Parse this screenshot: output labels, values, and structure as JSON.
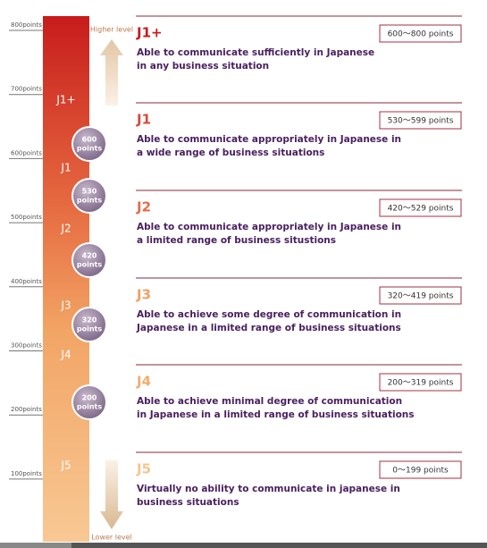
{
  "scale": {
    "labels": [
      "800points",
      "700points",
      "600points",
      "500points",
      "400points",
      "300points",
      "200points",
      "100points"
    ]
  },
  "bar": {
    "labels": [
      "J1+",
      "J1",
      "J2",
      "J3",
      "J4",
      "J5"
    ]
  },
  "markers": [
    {
      "top": "600",
      "bottom": "points"
    },
    {
      "top": "530",
      "bottom": "points"
    },
    {
      "top": "420",
      "bottom": "points"
    },
    {
      "top": "320",
      "bottom": "points"
    },
    {
      "top": "200",
      "bottom": "points"
    }
  ],
  "arrows": {
    "higher": "Higher level",
    "lower": "Lower level"
  },
  "levels": [
    {
      "title": "J1+",
      "range": "600～800 points",
      "description": [
        "Able to communicate sufficiently in Japanese",
        "in any business situation"
      ]
    },
    {
      "title": "J1",
      "range": "530～599 points",
      "description": [
        "Able to communicate appropriately in Japanese in",
        "a wide range of business situations"
      ]
    },
    {
      "title": "J2",
      "range": "420～529 points",
      "description": [
        "Able to communicate appropriately in Japanese in",
        "a limited range of business situstions"
      ]
    },
    {
      "title": "J3",
      "range": "320～419 points",
      "description": [
        "Able to achieve some degree of communication in",
        "Japanese in a limited range of business situations"
      ]
    },
    {
      "title": "J4",
      "range": "200～319 points",
      "description": [
        "Able to achieve minimal degree of communication",
        "in Japanese in a limited range of business situations"
      ]
    },
    {
      "title": "J5",
      "range": "0～199 points",
      "description": [
        "Virtually no ability to communicate in japanese in",
        "business situations"
      ]
    }
  ]
}
